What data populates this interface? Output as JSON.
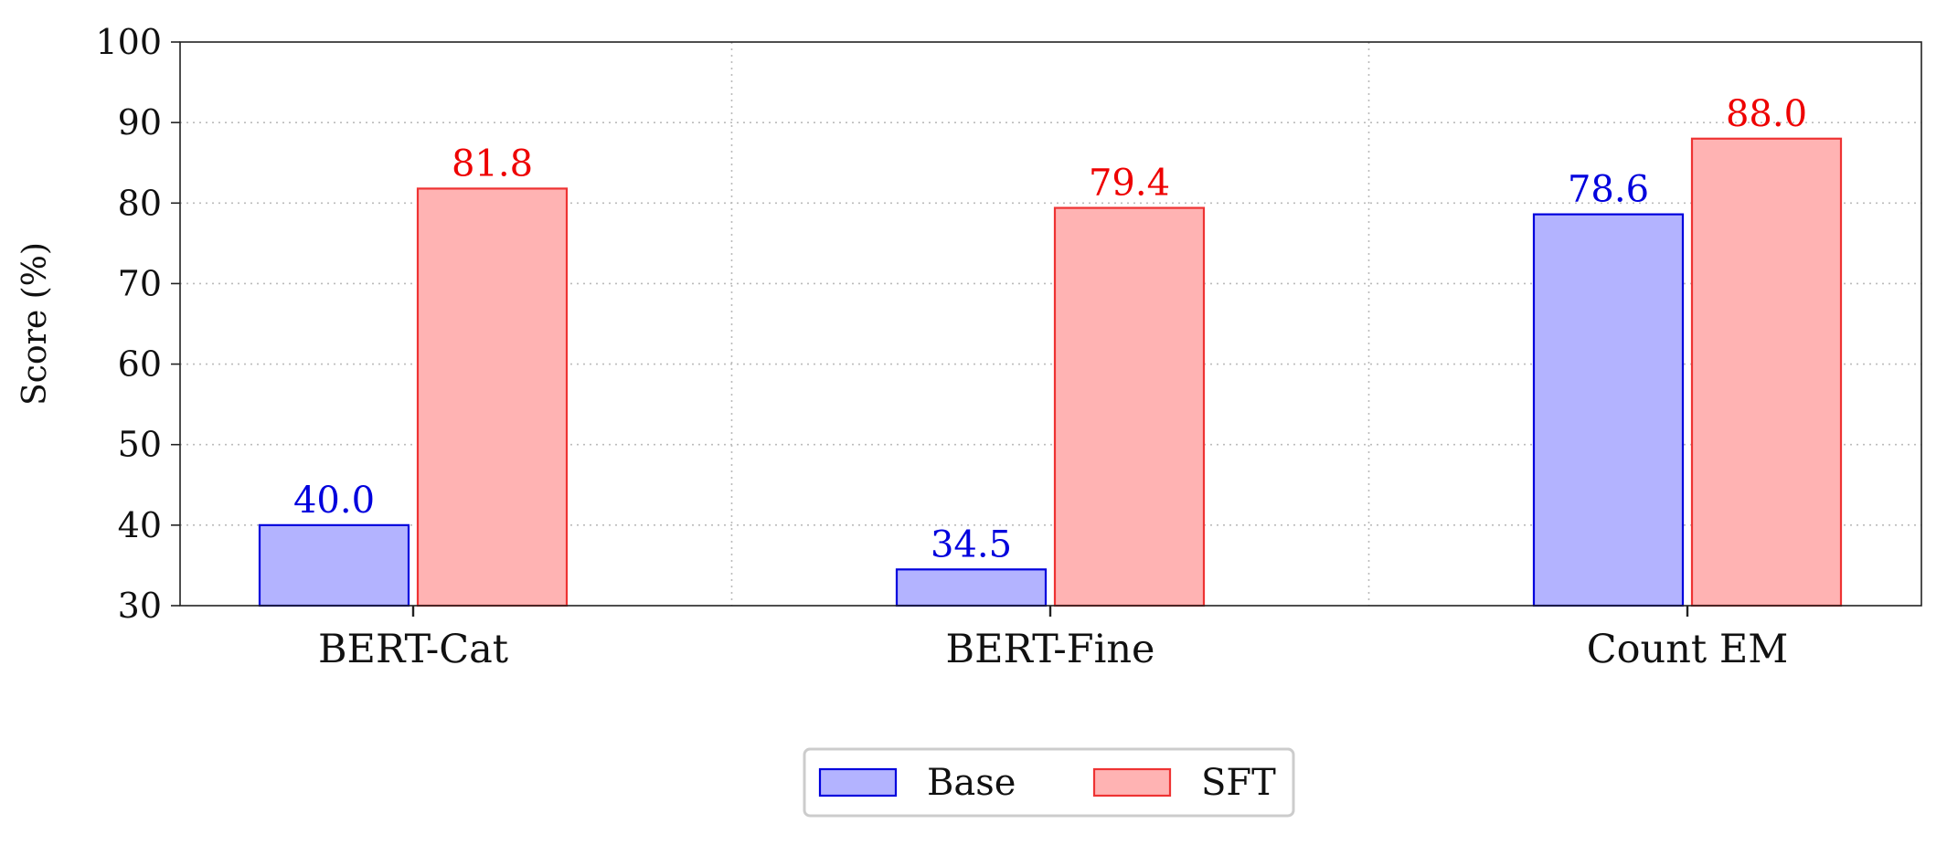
{
  "chart_data": {
    "type": "bar",
    "categories": [
      "BERT-Cat",
      "BERT-Fine",
      "Count EM"
    ],
    "series": [
      {
        "name": "Base",
        "values": [
          40.0,
          34.5,
          78.6
        ],
        "labels": [
          "40.0",
          "34.5",
          "78.6"
        ],
        "fill": "#b3b3ff",
        "stroke": "#0000dd",
        "label_color": "#0000dd"
      },
      {
        "name": "SFT",
        "values": [
          81.8,
          79.4,
          88.0
        ],
        "labels": [
          "81.8",
          "79.4",
          "88.0"
        ],
        "fill": "#ffb3b3",
        "stroke": "#ee3333",
        "label_color": "#ee0000"
      }
    ],
    "title": "",
    "xlabel": "",
    "ylabel": "Score (%)",
    "ylim": [
      30,
      100
    ],
    "yticks": [
      "30",
      "40",
      "50",
      "60",
      "70",
      "80",
      "90",
      "100"
    ],
    "grid": true,
    "legend": "bottom-center"
  }
}
